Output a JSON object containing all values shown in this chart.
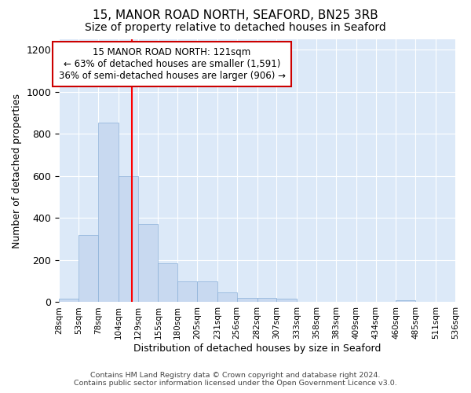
{
  "title1": "15, MANOR ROAD NORTH, SEAFORD, BN25 3RB",
  "title2": "Size of property relative to detached houses in Seaford",
  "xlabel": "Distribution of detached houses by size in Seaford",
  "ylabel": "Number of detached properties",
  "annotation_line1": "15 MANOR ROAD NORTH: 121sqm",
  "annotation_line2": "← 63% of detached houses are smaller (1,591)",
  "annotation_line3": "36% of semi-detached houses are larger (906) →",
  "bar_left_edges": [
    28,
    53,
    78,
    104,
    129,
    155,
    180,
    205,
    231,
    256,
    282,
    307,
    333,
    358,
    383,
    409,
    434,
    460,
    485,
    511
  ],
  "bar_widths": [
    25,
    25,
    26,
    25,
    26,
    25,
    25,
    26,
    25,
    26,
    25,
    26,
    25,
    25,
    26,
    25,
    26,
    25,
    26,
    25
  ],
  "bar_heights": [
    15,
    320,
    855,
    600,
    370,
    185,
    100,
    100,
    45,
    20,
    20,
    15,
    0,
    0,
    0,
    0,
    0,
    10,
    0,
    0
  ],
  "bar_color": "#c8d9f0",
  "bar_edgecolor": "#8ab0d8",
  "vline_x": 121,
  "vline_color": "red",
  "ylim": [
    0,
    1250
  ],
  "yticks": [
    0,
    200,
    400,
    600,
    800,
    1000,
    1200
  ],
  "tick_labels": [
    "28sqm",
    "53sqm",
    "78sqm",
    "104sqm",
    "129sqm",
    "155sqm",
    "180sqm",
    "205sqm",
    "231sqm",
    "256sqm",
    "282sqm",
    "307sqm",
    "333sqm",
    "358sqm",
    "383sqm",
    "409sqm",
    "434sqm",
    "460sqm",
    "485sqm",
    "511sqm",
    "536sqm"
  ],
  "footnote1": "Contains HM Land Registry data © Crown copyright and database right 2024.",
  "footnote2": "Contains public sector information licensed under the Open Government Licence v3.0.",
  "fig_bg_color": "#ffffff",
  "plot_bg_color": "#dce9f8",
  "annotation_box_facecolor": "#ffffff",
  "annotation_box_edgecolor": "#cc0000",
  "grid_color": "#ffffff",
  "title1_fontsize": 11,
  "title2_fontsize": 10,
  "ylabel_fontsize": 9,
  "xlabel_fontsize": 9,
  "annot_fontsize": 8.5,
  "footnote_fontsize": 6.8
}
